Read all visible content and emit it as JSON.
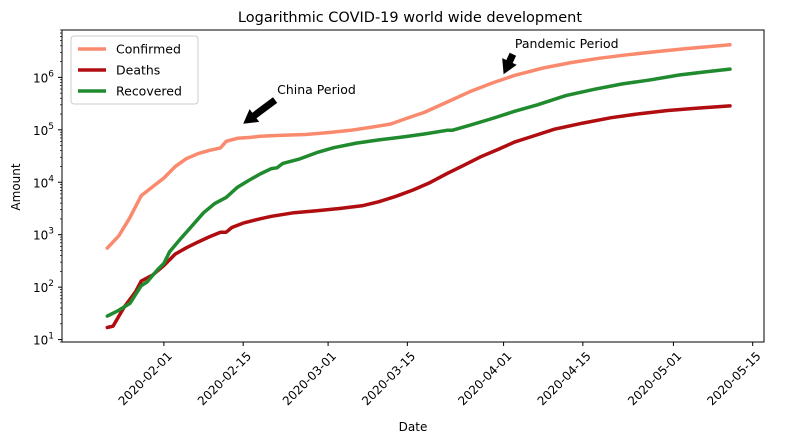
{
  "chart_data": {
    "type": "line",
    "title": "Logarithmic COVID-19 world wide development",
    "xlabel": "Date",
    "ylabel": "Amount",
    "yscale": "log",
    "ylim": [
      9,
      8000000
    ],
    "xlim": [
      "2020-01-14",
      "2020-05-17"
    ],
    "x_ticks": [
      "2020-02-01",
      "2020-02-15",
      "2020-03-01",
      "2020-03-15",
      "2020-04-01",
      "2020-04-15",
      "2020-05-01",
      "2020-05-15"
    ],
    "y_ticks": [
      {
        "value": 10,
        "base": "10",
        "exp": "1"
      },
      {
        "value": 100,
        "base": "10",
        "exp": "2"
      },
      {
        "value": 1000,
        "base": "10",
        "exp": "3"
      },
      {
        "value": 10000,
        "base": "10",
        "exp": "4"
      },
      {
        "value": 100000,
        "base": "10",
        "exp": "5"
      },
      {
        "value": 1000000,
        "base": "10",
        "exp": "6"
      }
    ],
    "grid": false,
    "legend_position": "top-left",
    "series": [
      {
        "name": "Confirmed",
        "color": "#fa8a6e",
        "points": [
          [
            "2020-01-22",
            555
          ],
          [
            "2020-01-24",
            941
          ],
          [
            "2020-01-26",
            2118
          ],
          [
            "2020-01-28",
            5578
          ],
          [
            "2020-01-30",
            8235
          ],
          [
            "2020-02-01",
            12038
          ],
          [
            "2020-02-03",
            19881
          ],
          [
            "2020-02-05",
            28276
          ],
          [
            "2020-02-07",
            34965
          ],
          [
            "2020-02-09",
            40553
          ],
          [
            "2020-02-11",
            45220
          ],
          [
            "2020-02-12",
            60368
          ],
          [
            "2020-02-14",
            68800
          ],
          [
            "2020-02-16",
            71230
          ],
          [
            "2020-02-18",
            75138
          ],
          [
            "2020-02-22",
            78599
          ],
          [
            "2020-02-26",
            81397
          ],
          [
            "2020-03-01",
            88369
          ],
          [
            "2020-03-05",
            97886
          ],
          [
            "2020-03-09",
            113584
          ],
          [
            "2020-03-12",
            128343
          ],
          [
            "2020-03-15",
            167446
          ],
          [
            "2020-03-18",
            214910
          ],
          [
            "2020-03-22",
            337020
          ],
          [
            "2020-03-26",
            529591
          ],
          [
            "2020-03-30",
            782365
          ],
          [
            "2020-04-03",
            1095917
          ],
          [
            "2020-04-08",
            1511104
          ],
          [
            "2020-04-13",
            1917320
          ],
          [
            "2020-04-18",
            2317759
          ],
          [
            "2020-04-23",
            2710000
          ],
          [
            "2020-04-28",
            3097229
          ],
          [
            "2020-05-03",
            3506729
          ],
          [
            "2020-05-08",
            3917366
          ],
          [
            "2020-05-11",
            4180000
          ]
        ]
      },
      {
        "name": "Deaths",
        "color": "#b00d10",
        "points": [
          [
            "2020-01-22",
            17
          ],
          [
            "2020-01-23",
            18
          ],
          [
            "2020-01-25",
            42
          ],
          [
            "2020-01-27",
            82
          ],
          [
            "2020-01-28",
            131
          ],
          [
            "2020-01-30",
            170
          ],
          [
            "2020-02-01",
            259
          ],
          [
            "2020-02-03",
            426
          ],
          [
            "2020-02-05",
            565
          ],
          [
            "2020-02-07",
            724
          ],
          [
            "2020-02-09",
            910
          ],
          [
            "2020-02-11",
            1115
          ],
          [
            "2020-02-12",
            1118
          ],
          [
            "2020-02-13",
            1370
          ],
          [
            "2020-02-15",
            1666
          ],
          [
            "2020-02-18",
            2006
          ],
          [
            "2020-02-20",
            2247
          ],
          [
            "2020-02-24",
            2629
          ],
          [
            "2020-02-28",
            2858
          ],
          [
            "2020-03-03",
            3160
          ],
          [
            "2020-03-07",
            3558
          ],
          [
            "2020-03-10",
            4262
          ],
          [
            "2020-03-13",
            5404
          ],
          [
            "2020-03-16",
            7126
          ],
          [
            "2020-03-19",
            9867
          ],
          [
            "2020-03-22",
            14634
          ],
          [
            "2020-03-25",
            21181
          ],
          [
            "2020-03-28",
            30652
          ],
          [
            "2020-03-31",
            42107
          ],
          [
            "2020-04-03",
            58787
          ],
          [
            "2020-04-06",
            74565
          ],
          [
            "2020-04-10",
            102525
          ],
          [
            "2020-04-15",
            134235
          ],
          [
            "2020-04-20",
            169985
          ],
          [
            "2020-04-25",
            203167
          ],
          [
            "2020-04-30",
            233388
          ],
          [
            "2020-05-05",
            256866
          ],
          [
            "2020-05-11",
            286330
          ]
        ]
      },
      {
        "name": "Recovered",
        "color": "#208a2e",
        "points": [
          [
            "2020-01-22",
            28
          ],
          [
            "2020-01-24",
            36
          ],
          [
            "2020-01-26",
            49
          ],
          [
            "2020-01-28",
            107
          ],
          [
            "2020-01-29",
            125
          ],
          [
            "2020-01-31",
            222
          ],
          [
            "2020-02-01",
            284
          ],
          [
            "2020-02-02",
            472
          ],
          [
            "2020-02-04",
            852
          ],
          [
            "2020-02-06",
            1487
          ],
          [
            "2020-02-08",
            2616
          ],
          [
            "2020-02-10",
            3946
          ],
          [
            "2020-02-12",
            5150
          ],
          [
            "2020-02-14",
            8058
          ],
          [
            "2020-02-16",
            10865
          ],
          [
            "2020-02-18",
            14352
          ],
          [
            "2020-02-20",
            18177
          ],
          [
            "2020-02-21",
            18890
          ],
          [
            "2020-02-22",
            22886
          ],
          [
            "2020-02-25",
            27905
          ],
          [
            "2020-02-28",
            36711
          ],
          [
            "2020-03-02",
            45602
          ],
          [
            "2020-03-06",
            55866
          ],
          [
            "2020-03-10",
            64198
          ],
          [
            "2020-03-14",
            72624
          ],
          [
            "2020-03-18",
            83312
          ],
          [
            "2020-03-22",
            97882
          ],
          [
            "2020-03-23",
            98334
          ],
          [
            "2020-03-26",
            122150
          ],
          [
            "2020-03-30",
            164566
          ],
          [
            "2020-04-03",
            226000
          ],
          [
            "2020-04-07",
            300000
          ],
          [
            "2020-04-12",
            449000
          ],
          [
            "2020-04-17",
            591000
          ],
          [
            "2020-04-22",
            750000
          ],
          [
            "2020-04-27",
            900000
          ],
          [
            "2020-05-02",
            1110000
          ],
          [
            "2020-05-07",
            1290000
          ],
          [
            "2020-05-11",
            1440000
          ]
        ]
      }
    ],
    "annotations": [
      {
        "name": "china-period",
        "text": "China Period",
        "xy": [
          "2020-02-15",
          130000
        ],
        "xytext": [
          "2020-02-21",
          480000
        ]
      },
      {
        "name": "pandemic-period",
        "text": "Pandemic Period",
        "xy": [
          "2020-04-01",
          1150000
        ],
        "xytext": [
          "2020-04-03",
          3600000
        ]
      }
    ]
  }
}
